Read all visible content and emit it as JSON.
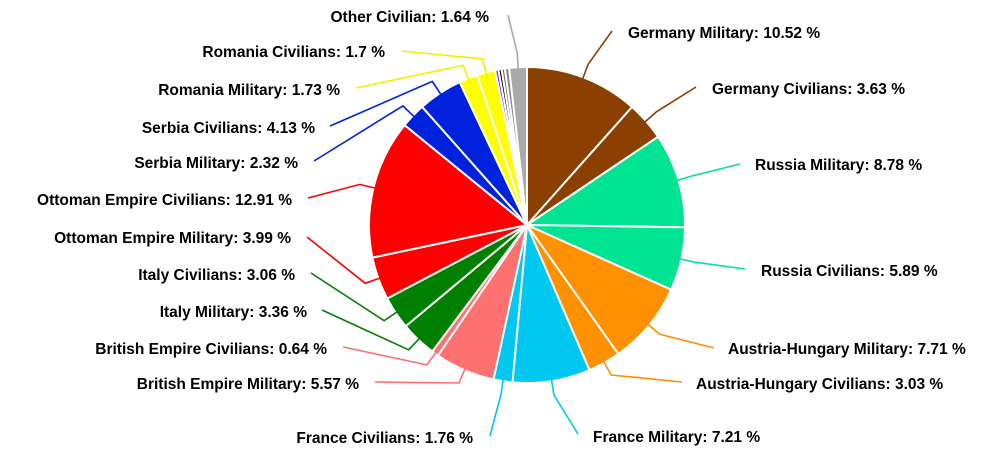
{
  "chart_data": {
    "type": "pie",
    "title": "",
    "start_angle_deg": 0,
    "direction": "clockwise",
    "unit": "%",
    "slices": [
      {
        "label": "Germany Military",
        "value": 10.52,
        "color": "#8b3f00",
        "display": "10.52 %"
      },
      {
        "label": "Germany Civilians",
        "value": 3.63,
        "color": "#8b3f00",
        "display": "3.63 %"
      },
      {
        "label": "Russia Military",
        "value": 8.78,
        "color": "#00e393",
        "display": "8.78 %"
      },
      {
        "label": "Russia Civilians",
        "value": 5.89,
        "color": "#00e393",
        "display": "5.89 %"
      },
      {
        "label": "Austria-Hungary Military",
        "value": 7.71,
        "color": "#ff9000",
        "display": "7.71 %"
      },
      {
        "label": "Austria-Hungary Civilians",
        "value": 3.03,
        "color": "#ff9000",
        "display": "3.03 %"
      },
      {
        "label": "France Military",
        "value": 7.21,
        "color": "#00c8f0",
        "display": "7.21 %"
      },
      {
        "label": "France Civilians",
        "value": 1.76,
        "color": "#00c8f0",
        "display": "1.76 %"
      },
      {
        "label": "British Empire Military",
        "value": 5.57,
        "color": "#ff7070",
        "display": "5.57 %"
      },
      {
        "label": "British Empire Civilians",
        "value": 0.64,
        "color": "#ff7070",
        "display": "0.64 %"
      },
      {
        "label": "Italy Military",
        "value": 3.36,
        "color": "#008000",
        "display": "3.36 %"
      },
      {
        "label": "Italy Civilians",
        "value": 3.06,
        "color": "#008000",
        "display": "3.06 %"
      },
      {
        "label": "Ottoman Empire Military",
        "value": 3.99,
        "color": "#ff0000",
        "display": "3.99 %"
      },
      {
        "label": "Ottoman Empire Civilians",
        "value": 12.91,
        "color": "#ff0000",
        "display": "12.91 %"
      },
      {
        "label": "Serbia Military",
        "value": 2.32,
        "color": "#0022dd",
        "display": "2.32 %"
      },
      {
        "label": "Serbia Civilians",
        "value": 4.13,
        "color": "#0022dd",
        "display": "4.13 %"
      },
      {
        "label": "Romania Military",
        "value": 1.73,
        "color": "#ffff00",
        "display": "1.73 %"
      },
      {
        "label": "Romania Civilians",
        "value": 1.7,
        "color": "#ffff00",
        "display": "1.7 %"
      },
      {
        "label": "",
        "value": 0.3,
        "color": "#9900ff",
        "display": ""
      },
      {
        "label": "",
        "value": 0.3,
        "color": "#000000",
        "display": ""
      },
      {
        "label": "",
        "value": 0.3,
        "color": "#666666",
        "display": ""
      },
      {
        "label": "",
        "value": 0.4,
        "color": "#888888",
        "display": ""
      },
      {
        "label": "Other Civilian",
        "value": 1.64,
        "color": "#aaaaaa",
        "display": "1.64 %"
      }
    ]
  }
}
